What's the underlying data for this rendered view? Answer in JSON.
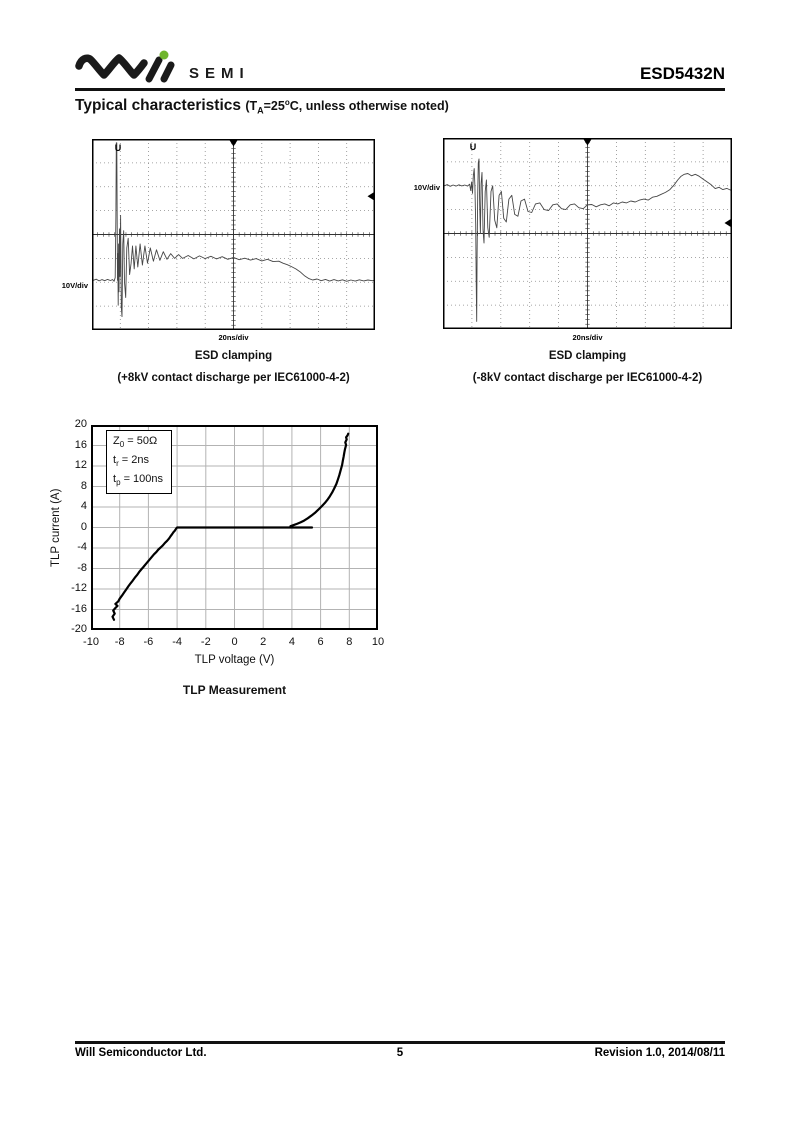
{
  "header": {
    "brand": "SEMI",
    "logo_mark": "will-wave-logo",
    "logo_dot_color": "#6fb52c",
    "part_number": "ESD5432N"
  },
  "section": {
    "title": "Typical characteristics ",
    "cond_pre": "(T",
    "cond_sub": "A",
    "cond_mid": "=25",
    "cond_sup": "o",
    "cond_post": "C, unless otherwise noted)"
  },
  "figures": {
    "scope_pos": {
      "v_per_div": "10V/div",
      "t_per_div": "20ns/div",
      "channel_marker": "U",
      "caption_title": "ESD clamping",
      "caption_detail": "(+8kV contact discharge per IEC61000-4-2)"
    },
    "scope_neg": {
      "v_per_div": "10V/div",
      "t_per_div": "20ns/div",
      "channel_marker": "U",
      "caption_title": "ESD clamping",
      "caption_detail": "(-8kV contact discharge per IEC61000-4-2)"
    },
    "tlp": {
      "caption": "TLP Measurement",
      "xlabel": "TLP voltage (V)",
      "ylabel": "TLP current (A)",
      "annotation": [
        {
          "base": "Z",
          "sub": "0",
          "rest": " = 50Ω"
        },
        {
          "base": "t",
          "sub": "r",
          "rest": " = 2ns"
        },
        {
          "base": "t",
          "sub": "p",
          "rest": " = 100ns"
        }
      ]
    }
  },
  "footer": {
    "company": "Will Semiconductor Ltd.",
    "page_number": "5",
    "revision": "Revision 1.0, 2014/08/11"
  },
  "chart_data": [
    {
      "name": "esd_clamping_positive_8kV",
      "type": "line",
      "title": "ESD clamping (+8kV contact discharge per IEC61000-4-2)",
      "x_units_per_div": "20ns",
      "y_units_per_div": "10V",
      "divisions_x": 10,
      "divisions_y": 8,
      "baseline_y_pct": 74,
      "trigger_marker_y_pct": 30,
      "channel_marker_x_pct": 9.2,
      "trace_pct": [
        [
          0.5,
          74
        ],
        [
          1.5,
          73.4
        ],
        [
          2.5,
          74.3
        ],
        [
          3.5,
          73.6
        ],
        [
          4.5,
          74.2
        ],
        [
          5.5,
          73.5
        ],
        [
          6.5,
          74.1
        ],
        [
          7.3,
          73.6
        ],
        [
          7.8,
          74.5
        ],
        [
          8.2,
          72.5
        ],
        [
          8.45,
          40
        ],
        [
          8.6,
          2
        ],
        [
          8.75,
          2
        ],
        [
          8.9,
          45
        ],
        [
          9.0,
          74
        ],
        [
          9.1,
          60
        ],
        [
          9.25,
          87
        ],
        [
          9.4,
          55
        ],
        [
          9.55,
          80
        ],
        [
          9.7,
          47
        ],
        [
          9.9,
          72
        ],
        [
          10.1,
          40
        ],
        [
          10.35,
          88
        ],
        [
          10.6,
          93
        ],
        [
          10.9,
          55
        ],
        [
          11.2,
          48
        ],
        [
          11.5,
          75
        ],
        [
          11.9,
          83
        ],
        [
          12.3,
          57
        ],
        [
          12.8,
          52
        ],
        [
          13.3,
          71
        ],
        [
          13.8,
          65
        ],
        [
          14.3,
          56
        ],
        [
          14.9,
          68
        ],
        [
          15.5,
          56
        ],
        [
          16.2,
          67
        ],
        [
          17,
          55
        ],
        [
          17.8,
          66
        ],
        [
          18.7,
          56
        ],
        [
          19.6,
          65
        ],
        [
          20.6,
          57
        ],
        [
          21.7,
          64
        ],
        [
          22.8,
          58
        ],
        [
          24,
          63.5
        ],
        [
          25.2,
          59
        ],
        [
          26.5,
          63
        ],
        [
          27.8,
          60
        ],
        [
          29.2,
          62.5
        ],
        [
          30.6,
          60.5
        ],
        [
          32,
          62.5
        ],
        [
          34,
          61
        ],
        [
          36,
          62.8
        ],
        [
          38,
          61.2
        ],
        [
          40,
          62.6
        ],
        [
          42,
          61.4
        ],
        [
          44,
          62.8
        ],
        [
          46,
          61.6
        ],
        [
          48,
          63
        ],
        [
          50,
          62
        ],
        [
          52,
          63.2
        ],
        [
          54,
          62.4
        ],
        [
          56,
          63.4
        ],
        [
          58,
          62.6
        ],
        [
          60,
          63.8
        ],
        [
          62,
          63
        ],
        [
          64,
          64.2
        ],
        [
          66,
          64
        ],
        [
          67.5,
          65
        ],
        [
          69,
          65.8
        ],
        [
          70.5,
          66.8
        ],
        [
          72,
          68
        ],
        [
          73.5,
          69.5
        ],
        [
          75,
          71.5
        ],
        [
          76.5,
          73
        ],
        [
          78,
          73.8
        ],
        [
          79.5,
          73.3
        ],
        [
          81,
          74.2
        ],
        [
          82.5,
          73.5
        ],
        [
          84,
          74.4
        ],
        [
          85.5,
          73.6
        ],
        [
          87,
          74.3
        ],
        [
          88.5,
          73.7
        ],
        [
          90,
          74.5
        ],
        [
          91.5,
          73.8
        ],
        [
          93,
          74.4
        ],
        [
          94.5,
          73.7
        ],
        [
          96,
          74.3
        ],
        [
          97.5,
          73.8
        ],
        [
          99,
          74.2
        ],
        [
          100,
          74
        ]
      ]
    },
    {
      "name": "esd_clamping_negative_8kV",
      "type": "line",
      "title": "ESD clamping (-8kV contact discharge per IEC61000-4-2)",
      "x_units_per_div": "20ns",
      "y_units_per_div": "10V",
      "divisions_x": 10,
      "divisions_y": 8,
      "baseline_y_pct": 25,
      "trigger_marker_y_pct": 44.5,
      "channel_marker_x_pct": 10.4,
      "trace_pct": [
        [
          0.5,
          25
        ],
        [
          1.5,
          24.4
        ],
        [
          2.5,
          25.3
        ],
        [
          3.5,
          24.6
        ],
        [
          4.5,
          25.2
        ],
        [
          5.5,
          24.5
        ],
        [
          6.5,
          25.1
        ],
        [
          7.5,
          24.6
        ],
        [
          8.5,
          25.2
        ],
        [
          9.2,
          24.2
        ],
        [
          9.6,
          27.5
        ],
        [
          9.9,
          23
        ],
        [
          10.2,
          29
        ],
        [
          10.5,
          20
        ],
        [
          10.8,
          16
        ],
        [
          11.05,
          25
        ],
        [
          11.3,
          45
        ],
        [
          11.5,
          75
        ],
        [
          11.65,
          96
        ],
        [
          11.8,
          60
        ],
        [
          12.0,
          30
        ],
        [
          12.2,
          13
        ],
        [
          12.45,
          11
        ],
        [
          12.7,
          35
        ],
        [
          12.95,
          50
        ],
        [
          13.2,
          24
        ],
        [
          13.5,
          18
        ],
        [
          13.85,
          48
        ],
        [
          14.2,
          55
        ],
        [
          14.6,
          28
        ],
        [
          15,
          22
        ],
        [
          15.5,
          47
        ],
        [
          16,
          52
        ],
        [
          16.6,
          28
        ],
        [
          17.2,
          25
        ],
        [
          17.9,
          43
        ],
        [
          18.6,
          47
        ],
        [
          19.4,
          30
        ],
        [
          20.2,
          28
        ],
        [
          21,
          42
        ],
        [
          21.9,
          44
        ],
        [
          22.8,
          32
        ],
        [
          23.8,
          30
        ],
        [
          24.8,
          40
        ],
        [
          25.9,
          41
        ],
        [
          27,
          33
        ],
        [
          28.2,
          32
        ],
        [
          29.4,
          38.5
        ],
        [
          30.7,
          39
        ],
        [
          32,
          34.5
        ],
        [
          33.5,
          34
        ],
        [
          35,
          37.5
        ],
        [
          36.5,
          38
        ],
        [
          38,
          35
        ],
        [
          39.5,
          34.5
        ],
        [
          41,
          37
        ],
        [
          42.5,
          37.5
        ],
        [
          44,
          35
        ],
        [
          45.5,
          34.5
        ],
        [
          47,
          36.5
        ],
        [
          48.5,
          37
        ],
        [
          50,
          35
        ],
        [
          51.5,
          34.8
        ],
        [
          53,
          36
        ],
        [
          54.5,
          35
        ],
        [
          56,
          34.5
        ],
        [
          57.5,
          35.5
        ],
        [
          59,
          34
        ],
        [
          60.5,
          34.5
        ],
        [
          62,
          33.5
        ],
        [
          63.5,
          34
        ],
        [
          65,
          33
        ],
        [
          66.5,
          33.5
        ],
        [
          68,
          32.5
        ],
        [
          69.5,
          32
        ],
        [
          71,
          32.5
        ],
        [
          72.5,
          31
        ],
        [
          74,
          30.5
        ],
        [
          75.5,
          29.5
        ],
        [
          77,
          28.5
        ],
        [
          78.5,
          27
        ],
        [
          80,
          24.5
        ],
        [
          81.2,
          22
        ],
        [
          82.4,
          20
        ],
        [
          83.5,
          19
        ],
        [
          84.7,
          18.6
        ],
        [
          86,
          19.8
        ],
        [
          87.3,
          19
        ],
        [
          88.6,
          20
        ],
        [
          90,
          21.5
        ],
        [
          91.4,
          23
        ],
        [
          92.8,
          24.5
        ],
        [
          94.2,
          26.5
        ],
        [
          95.5,
          25.8
        ],
        [
          96.8,
          27
        ],
        [
          98.2,
          26.4
        ],
        [
          99.4,
          27.2
        ],
        [
          100,
          27
        ]
      ]
    },
    {
      "name": "tlp_measurement",
      "type": "line",
      "title": "TLP Measurement",
      "xlabel": "TLP voltage (V)",
      "ylabel": "TLP current (A)",
      "xlim": [
        -10,
        10
      ],
      "ylim": [
        -20,
        20
      ],
      "grid": true,
      "x_ticks": [
        -10,
        -8,
        -6,
        -4,
        -2,
        0,
        2,
        4,
        6,
        8,
        10
      ],
      "y_ticks": [
        20,
        16,
        12,
        8,
        4,
        0,
        -4,
        -8,
        -12,
        -16,
        -20
      ],
      "annotation_text": [
        "Z0 = 50Ω",
        "tr = 2ns",
        "tp = 100ns"
      ],
      "series": [
        {
          "name": "negative_branch_and_zero_line",
          "points": [
            [
              -8.4,
              -18
            ],
            [
              -8.5,
              -17.4
            ],
            [
              -8.35,
              -16.8
            ],
            [
              -8.45,
              -16.2
            ],
            [
              -8.3,
              -15.7
            ],
            [
              -8.15,
              -15.3
            ],
            [
              -8.3,
              -14.9
            ],
            [
              -8.1,
              -14.4
            ],
            [
              -8.0,
              -13.9
            ],
            [
              -7.85,
              -13.3
            ],
            [
              -7.7,
              -12.7
            ],
            [
              -7.55,
              -12.1
            ],
            [
              -7.4,
              -11.5
            ],
            [
              -7.25,
              -10.9
            ],
            [
              -7.1,
              -10.4
            ],
            [
              -6.95,
              -9.8
            ],
            [
              -6.8,
              -9.3
            ],
            [
              -6.65,
              -8.7
            ],
            [
              -6.5,
              -8.2
            ],
            [
              -6.35,
              -7.7
            ],
            [
              -6.2,
              -7.2
            ],
            [
              -6.05,
              -6.7
            ],
            [
              -5.9,
              -6.2
            ],
            [
              -5.75,
              -5.7
            ],
            [
              -5.6,
              -5.2
            ],
            [
              -5.45,
              -4.8
            ],
            [
              -5.3,
              -4.3
            ],
            [
              -5.15,
              -3.9
            ],
            [
              -5.0,
              -3.5
            ],
            [
              -4.85,
              -3.0
            ],
            [
              -4.7,
              -2.6
            ],
            [
              -4.55,
              -2.1
            ],
            [
              -4.45,
              -1.7
            ],
            [
              -4.35,
              -1.3
            ],
            [
              -4.25,
              -0.9
            ],
            [
              -4.15,
              -0.6
            ],
            [
              -4.1,
              -0.35
            ],
            [
              -4.05,
              -0.15
            ],
            [
              -4.0,
              0
            ],
            [
              5.4,
              0
            ]
          ]
        },
        {
          "name": "positive_branch",
          "points": [
            [
              3.9,
              0.25
            ],
            [
              4.1,
              0.45
            ],
            [
              4.35,
              0.7
            ],
            [
              4.6,
              1.0
            ],
            [
              4.85,
              1.35
            ],
            [
              5.1,
              1.8
            ],
            [
              5.35,
              2.3
            ],
            [
              5.6,
              2.85
            ],
            [
              5.85,
              3.5
            ],
            [
              6.1,
              4.2
            ],
            [
              6.3,
              4.8
            ],
            [
              6.5,
              5.5
            ],
            [
              6.65,
              6.1
            ],
            [
              6.8,
              6.8
            ],
            [
              6.95,
              7.6
            ],
            [
              7.1,
              8.5
            ],
            [
              7.2,
              9.3
            ],
            [
              7.3,
              10.2
            ],
            [
              7.4,
              11.2
            ],
            [
              7.5,
              12.2
            ],
            [
              7.55,
              13.0
            ],
            [
              7.6,
              13.8
            ],
            [
              7.65,
              14.6
            ],
            [
              7.7,
              15.3
            ],
            [
              7.78,
              16.1
            ],
            [
              7.72,
              16.6
            ],
            [
              7.82,
              17.2
            ],
            [
              7.78,
              17.6
            ],
            [
              7.88,
              18.0
            ],
            [
              7.92,
              18.3
            ]
          ]
        }
      ]
    }
  ]
}
